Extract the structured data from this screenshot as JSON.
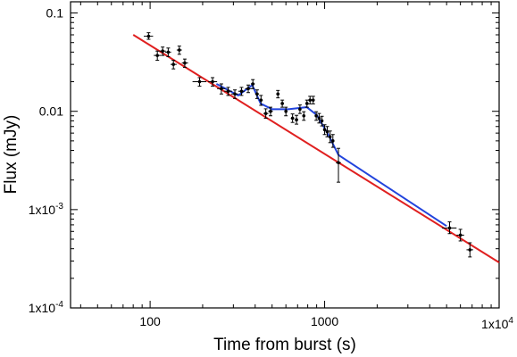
{
  "chart_data": {
    "type": "scatter",
    "xlabel": "Time from burst (s)",
    "ylabel": "Flux (mJy)",
    "x_scale": "log",
    "y_scale": "log",
    "xlim": [
      35,
      10000
    ],
    "ylim": [
      0.0001,
      0.13
    ],
    "grid": false,
    "x_tick_labels": [
      {
        "value": 100,
        "label": "100"
      },
      {
        "value": 1000,
        "label": "1000"
      },
      {
        "value": 10000,
        "label": "1x10",
        "exp": "4"
      }
    ],
    "y_tick_labels": [
      {
        "value": 0.1,
        "label": "0.1"
      },
      {
        "value": 0.01,
        "label": "0.01"
      },
      {
        "value": 0.001,
        "label": "1x10",
        "exp": "-3"
      },
      {
        "value": 0.0001,
        "label": "1x10",
        "exp": "-4"
      }
    ],
    "colors": {
      "data": "#000000",
      "powerlaw_fit": "#e02020",
      "flare_model": "#2244dd"
    },
    "series": [
      {
        "kind": "points",
        "points": [
          {
            "x": 98,
            "y": 0.058,
            "xerr": [
              92,
              104
            ],
            "yerr": [
              0.054,
              0.063
            ]
          },
          {
            "x": 110,
            "y": 0.037,
            "xerr": [
              105,
              115
            ],
            "yerr": [
              0.033,
              0.041
            ]
          },
          {
            "x": 118,
            "y": 0.041,
            "xerr": [
              113,
              123
            ],
            "yerr": [
              0.037,
              0.045
            ]
          },
          {
            "x": 127,
            "y": 0.04,
            "xerr": [
              122,
              132
            ],
            "yerr": [
              0.036,
              0.044
            ]
          },
          {
            "x": 136,
            "y": 0.03,
            "xerr": [
              131,
              142
            ],
            "yerr": [
              0.027,
              0.033
            ]
          },
          {
            "x": 147,
            "y": 0.042,
            "xerr": [
              142,
              152
            ],
            "yerr": [
              0.038,
              0.046
            ]
          },
          {
            "x": 158,
            "y": 0.031,
            "xerr": [
              152,
              165
            ],
            "yerr": [
              0.028,
              0.034
            ]
          },
          {
            "x": 192,
            "y": 0.02,
            "xerr": [
              175,
              210
            ],
            "yerr": [
              0.018,
              0.022
            ]
          },
          {
            "x": 228,
            "y": 0.02,
            "xerr": [
              215,
              242
            ],
            "yerr": [
              0.018,
              0.022
            ]
          },
          {
            "x": 256,
            "y": 0.017,
            "xerr": [
              242,
              270
            ],
            "yerr": [
              0.015,
              0.019
            ]
          },
          {
            "x": 280,
            "y": 0.016,
            "xerr": [
              266,
              295
            ],
            "yerr": [
              0.0145,
              0.0175
            ]
          },
          {
            "x": 306,
            "y": 0.015,
            "xerr": [
              292,
              320
            ],
            "yerr": [
              0.0135,
              0.0165
            ]
          },
          {
            "x": 334,
            "y": 0.016,
            "xerr": [
              320,
              348
            ],
            "yerr": [
              0.0145,
              0.0175
            ]
          },
          {
            "x": 365,
            "y": 0.017,
            "xerr": [
              350,
              380
            ],
            "yerr": [
              0.0155,
              0.0185
            ]
          },
          {
            "x": 388,
            "y": 0.019,
            "xerr": [
              378,
              398
            ],
            "yerr": [
              0.017,
              0.021
            ]
          },
          {
            "x": 410,
            "y": 0.015,
            "xerr": [
              400,
              420
            ],
            "yerr": [
              0.0135,
              0.0165
            ]
          },
          {
            "x": 432,
            "y": 0.013,
            "xerr": [
              422,
              442
            ],
            "yerr": [
              0.0115,
              0.0145
            ]
          },
          {
            "x": 460,
            "y": 0.0095,
            "xerr": [
              445,
              476
            ],
            "yerr": [
              0.0085,
              0.0106
            ]
          },
          {
            "x": 490,
            "y": 0.01,
            "xerr": [
              475,
              505
            ],
            "yerr": [
              0.009,
              0.011
            ]
          },
          {
            "x": 540,
            "y": 0.015,
            "xerr": [
              528,
              552
            ],
            "yerr": [
              0.0137,
              0.0163
            ]
          },
          {
            "x": 572,
            "y": 0.012,
            "xerr": [
              560,
              585
            ],
            "yerr": [
              0.011,
              0.013
            ]
          },
          {
            "x": 600,
            "y": 0.01,
            "xerr": [
              588,
              612
            ],
            "yerr": [
              0.009,
              0.011
            ]
          },
          {
            "x": 655,
            "y": 0.0085,
            "xerr": [
              640,
              670
            ],
            "yerr": [
              0.0077,
              0.0094
            ]
          },
          {
            "x": 690,
            "y": 0.0082,
            "xerr": [
              675,
              705
            ],
            "yerr": [
              0.0074,
              0.0091
            ]
          },
          {
            "x": 722,
            "y": 0.0105,
            "xerr": [
              708,
              736
            ],
            "yerr": [
              0.0095,
              0.0116
            ]
          },
          {
            "x": 760,
            "y": 0.009,
            "xerr": [
              745,
              775
            ],
            "yerr": [
              0.0081,
              0.0099
            ]
          },
          {
            "x": 792,
            "y": 0.012,
            "xerr": [
              778,
              806
            ],
            "yerr": [
              0.011,
              0.013
            ]
          },
          {
            "x": 825,
            "y": 0.013,
            "xerr": [
              812,
              838
            ],
            "yerr": [
              0.0119,
              0.0142
            ]
          },
          {
            "x": 860,
            "y": 0.013,
            "xerr": [
              847,
              873
            ],
            "yerr": [
              0.0119,
              0.0142
            ]
          },
          {
            "x": 895,
            "y": 0.009,
            "xerr": [
              883,
              907
            ],
            "yerr": [
              0.0081,
              0.0099
            ]
          },
          {
            "x": 930,
            "y": 0.0085,
            "xerr": [
              918,
              942
            ],
            "yerr": [
              0.0076,
              0.0095
            ]
          },
          {
            "x": 965,
            "y": 0.008,
            "xerr": [
              953,
              977
            ],
            "yerr": [
              0.0071,
              0.0089
            ]
          },
          {
            "x": 1000,
            "y": 0.0065,
            "xerr": [
              988,
              1012
            ],
            "yerr": [
              0.0058,
              0.0073
            ]
          },
          {
            "x": 1035,
            "y": 0.0062,
            "xerr": [
              1022,
              1048
            ],
            "yerr": [
              0.0055,
              0.007
            ]
          },
          {
            "x": 1075,
            "y": 0.0055,
            "xerr": [
              1060,
              1090
            ],
            "yerr": [
              0.0048,
              0.0063
            ]
          },
          {
            "x": 1115,
            "y": 0.005,
            "xerr": [
              1100,
              1130
            ],
            "yerr": [
              0.0043,
              0.0058
            ]
          },
          {
            "x": 1200,
            "y": 0.003,
            "xerr": [
              1160,
              1240
            ],
            "yerr": [
              0.0019,
              0.0042
            ]
          },
          {
            "x": 5200,
            "y": 0.00065,
            "xerr": [
              4700,
              5700
            ],
            "yerr": [
              0.00057,
              0.00075
            ]
          },
          {
            "x": 6000,
            "y": 0.00055,
            "xerr": [
              5700,
              6300
            ],
            "yerr": [
              0.00048,
              0.00063
            ]
          },
          {
            "x": 6800,
            "y": 0.00039,
            "xerr": [
              6500,
              7100
            ],
            "yerr": [
              0.00033,
              0.00046
            ]
          }
        ]
      },
      {
        "kind": "line",
        "color_key": "powerlaw_fit",
        "x": [
          80,
          10000
        ],
        "y": [
          0.06,
          0.00029
        ]
      },
      {
        "kind": "line",
        "color_key": "flare_model",
        "x": [
          240,
          320,
          385,
          430,
          500,
          620,
          790,
          900,
          1050,
          1200,
          5000
        ],
        "y": [
          0.019,
          0.0145,
          0.0185,
          0.012,
          0.0105,
          0.0105,
          0.011,
          0.0092,
          0.0058,
          0.0036,
          0.00068
        ]
      }
    ]
  }
}
